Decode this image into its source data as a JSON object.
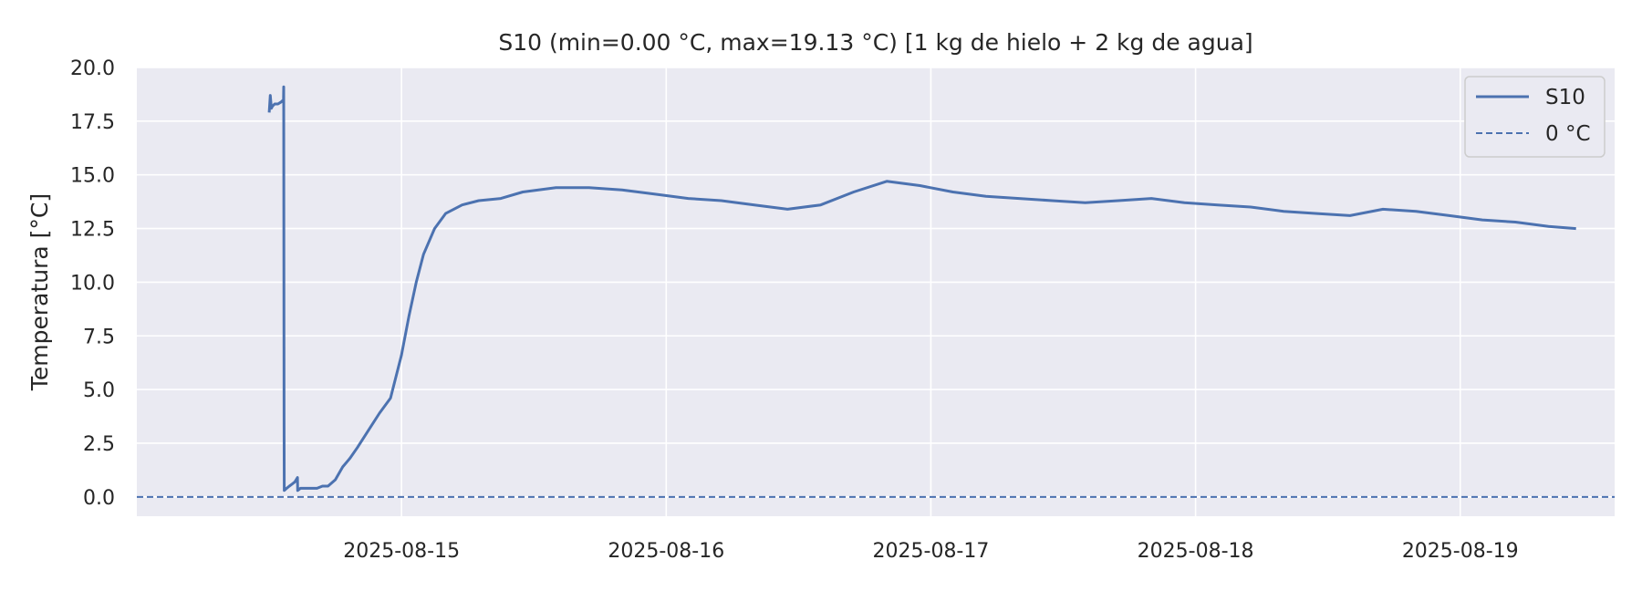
{
  "chart_data": {
    "type": "line",
    "title": "S10  (min=0.00 °C, max=19.13 °C)  [1 kg de hielo + 2 kg de agua]",
    "xlabel": "",
    "ylabel": "Temperatura [°C]",
    "ylim": [
      -0.9,
      20.0
    ],
    "xlim": [
      "2025-08-14T00:00",
      "2025-08-19T14:00"
    ],
    "yticks": [
      "0.0",
      "2.5",
      "5.0",
      "7.5",
      "10.0",
      "12.5",
      "15.0",
      "17.5",
      "20.0"
    ],
    "xticks": [
      "2025-08-15",
      "2025-08-16",
      "2025-08-17",
      "2025-08-18",
      "2025-08-19"
    ],
    "grid": true,
    "legend_position": "top-right",
    "colors": {
      "series": "#4c72b0",
      "background": "#eaeaf2",
      "grid": "#ffffff"
    },
    "series": [
      {
        "name": "S10",
        "style": "solid",
        "x": [
          "2025-08-14T12:00",
          "2025-08-14T12:06",
          "2025-08-14T12:12",
          "2025-08-14T12:18",
          "2025-08-14T12:30",
          "2025-08-14T12:48",
          "2025-08-14T13:06",
          "2025-08-14T13:18",
          "2025-08-14T13:19",
          "2025-08-14T13:21",
          "2025-08-14T13:22",
          "2025-08-14T13:35",
          "2025-08-14T13:50",
          "2025-08-14T14:05",
          "2025-08-14T14:20",
          "2025-08-14T14:34",
          "2025-08-14T14:35",
          "2025-08-14T14:50",
          "2025-08-14T15:20",
          "2025-08-14T15:50",
          "2025-08-14T16:20",
          "2025-08-14T16:50",
          "2025-08-14T17:20",
          "2025-08-14T18:00",
          "2025-08-14T18:40",
          "2025-08-14T19:20",
          "2025-08-14T20:00",
          "2025-08-14T21:00",
          "2025-08-14T22:00",
          "2025-08-14T23:00",
          "2025-08-15T00:00",
          "2025-08-15T00:40",
          "2025-08-15T01:20",
          "2025-08-15T02:00",
          "2025-08-15T03:00",
          "2025-08-15T04:00",
          "2025-08-15T05:30",
          "2025-08-15T07:00",
          "2025-08-15T09:00",
          "2025-08-15T11:00",
          "2025-08-15T14:00",
          "2025-08-15T17:00",
          "2025-08-15T20:00",
          "2025-08-15T23:00",
          "2025-08-16T02:00",
          "2025-08-16T05:00",
          "2025-08-16T08:00",
          "2025-08-16T11:00",
          "2025-08-16T14:00",
          "2025-08-16T17:00",
          "2025-08-16T20:00",
          "2025-08-16T23:00",
          "2025-08-17T02:00",
          "2025-08-17T05:00",
          "2025-08-17T08:00",
          "2025-08-17T11:00",
          "2025-08-17T14:00",
          "2025-08-17T17:00",
          "2025-08-17T20:00",
          "2025-08-17T23:00",
          "2025-08-18T02:00",
          "2025-08-18T05:00",
          "2025-08-18T08:00",
          "2025-08-18T11:00",
          "2025-08-18T14:00",
          "2025-08-18T17:00",
          "2025-08-18T20:00",
          "2025-08-18T23:00",
          "2025-08-19T02:00",
          "2025-08-19T05:00",
          "2025-08-19T08:00",
          "2025-08-19T10:30"
        ],
        "y": [
          17.9,
          18.7,
          18.1,
          18.2,
          18.3,
          18.3,
          18.4,
          18.5,
          19.1,
          3.6,
          0.3,
          0.4,
          0.5,
          0.6,
          0.7,
          0.9,
          0.3,
          0.4,
          0.4,
          0.4,
          0.4,
          0.5,
          0.5,
          0.8,
          1.4,
          1.8,
          2.3,
          3.1,
          3.9,
          4.6,
          6.6,
          8.4,
          10.0,
          11.3,
          12.5,
          13.2,
          13.6,
          13.8,
          13.9,
          14.2,
          14.4,
          14.4,
          14.3,
          14.1,
          13.9,
          13.8,
          13.6,
          13.4,
          13.6,
          14.2,
          14.7,
          14.5,
          14.2,
          14.0,
          13.9,
          13.8,
          13.7,
          13.8,
          13.9,
          13.7,
          13.6,
          13.5,
          13.3,
          13.2,
          13.1,
          13.4,
          13.3,
          13.1,
          12.9,
          12.8,
          12.6,
          12.5
        ]
      },
      {
        "name": "0 °C",
        "style": "dashed",
        "y_constant": 0.0
      }
    ]
  }
}
